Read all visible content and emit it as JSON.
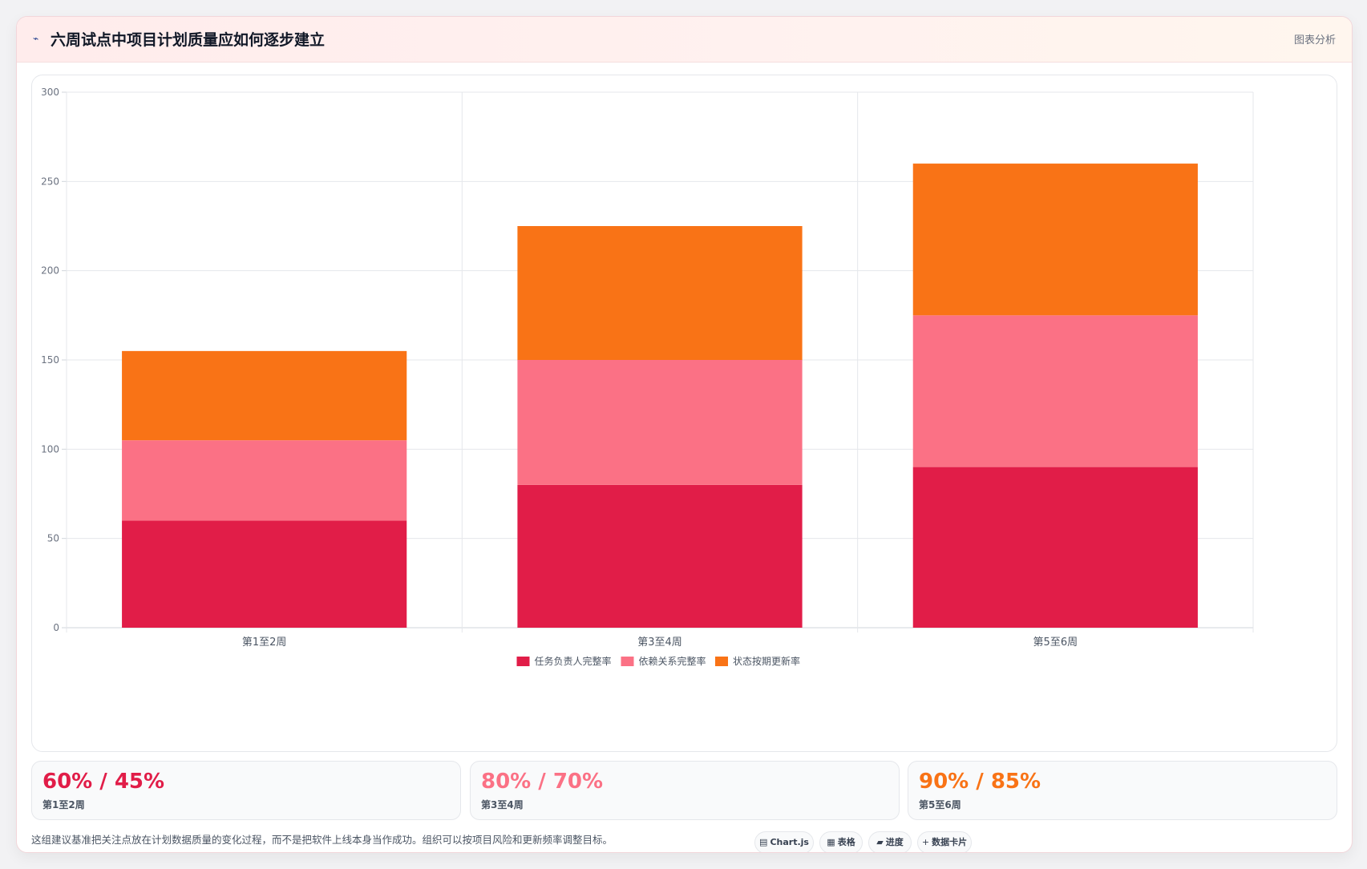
{
  "header": {
    "title_icon": "trend-icon",
    "title": "六周试点中项目计划质量应如何逐步建立",
    "right_label": "图表分析"
  },
  "chart_data": {
    "type": "bar",
    "stacked": true,
    "categories": [
      "第1至2周",
      "第3至4周",
      "第5至6周"
    ],
    "series": [
      {
        "name": "任务负责人完整率",
        "color": "#e11d48",
        "values": [
          60,
          80,
          90
        ]
      },
      {
        "name": "依赖关系完整率",
        "color": "#fb7185",
        "values": [
          45,
          70,
          85
        ]
      },
      {
        "name": "状态按期更新率",
        "color": "#f97316",
        "values": [
          50,
          75,
          85
        ]
      }
    ],
    "ylim": [
      0,
      300
    ],
    "yticks": [
      0,
      50,
      100,
      150,
      200,
      250,
      300
    ],
    "grid": true,
    "legend": "bottom"
  },
  "stats": [
    {
      "value": "60% / 45%",
      "label": "第1至2周",
      "color": "#e11d48"
    },
    {
      "value": "80% / 70%",
      "label": "第3至4周",
      "color": "#fb7185"
    },
    {
      "value": "90% / 85%",
      "label": "第5至6周",
      "color": "#f97316"
    }
  ],
  "note": "这组建议基准把关注点放在计划数据质量的变化过程，而不是把软件上线本身当作成功。组织可以按项目风险和更新频率调整目标。",
  "chips": [
    {
      "icon": "▤",
      "icon_name": "chart-icon",
      "label": "Chart.js"
    },
    {
      "icon": "▦",
      "icon_name": "table-icon",
      "label": "表格"
    },
    {
      "icon": "▰",
      "icon_name": "progress-icon",
      "label": "进度"
    },
    {
      "icon": "+",
      "icon_name": "plus-icon",
      "label": "数据卡片"
    }
  ]
}
